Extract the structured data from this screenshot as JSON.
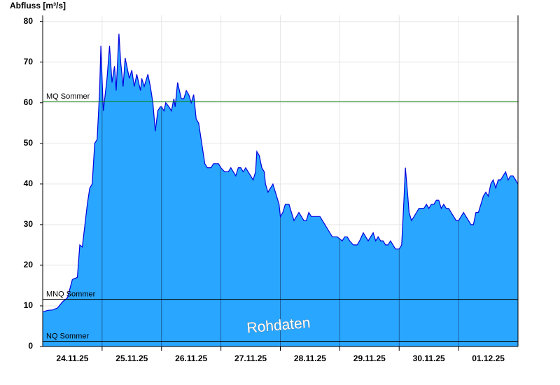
{
  "chart_data": {
    "type": "area",
    "title": "Abfluss [m³/s]",
    "annotation": "Rohdaten",
    "color": "#29a6ff",
    "line_color": "#0000dd",
    "grid": true,
    "xlim": [
      0,
      192
    ],
    "ylim": [
      0,
      81.5
    ],
    "yticks": [
      0,
      10,
      20,
      30,
      40,
      50,
      60,
      70,
      80
    ],
    "xticks": [
      {
        "value": 12,
        "label": "24.11.25"
      },
      {
        "value": 36,
        "label": "25.11.25"
      },
      {
        "value": 60,
        "label": "26.11.25"
      },
      {
        "value": 84,
        "label": "27.11.25"
      },
      {
        "value": 108,
        "label": "28.11.25"
      },
      {
        "value": 132,
        "label": "29.11.25"
      },
      {
        "value": 156,
        "label": "30.11.25"
      },
      {
        "value": 180,
        "label": "01.12.25"
      }
    ],
    "xgrid": [
      24,
      48,
      72,
      96,
      120,
      144,
      168
    ],
    "reference_lines": [
      {
        "label": "MQ Sommer",
        "value": 60.3,
        "color": "#008000"
      },
      {
        "label": "MNQ Sommer",
        "value": 11.6,
        "color": "#000000"
      },
      {
        "label": "NQ Sommer",
        "value": 1.3,
        "color": "#000000"
      }
    ],
    "x": [
      0,
      2,
      4,
      6,
      8,
      10,
      12,
      14,
      15,
      16,
      18,
      19,
      20,
      21,
      22,
      23,
      23.5,
      24.5,
      26,
      27,
      28,
      29,
      29.7,
      30.8,
      31.5,
      32.5,
      33.3,
      35,
      36,
      37,
      38,
      39.5,
      40,
      41,
      42.5,
      43.5,
      44.5,
      45.5,
      46.5,
      47.5,
      48,
      49,
      49.7,
      51,
      52,
      53,
      53.5,
      54.5,
      56,
      57,
      58,
      59,
      60,
      61,
      62,
      63,
      64.5,
      65.5,
      66.5,
      68,
      69,
      71,
      72,
      73.5,
      75,
      76,
      77,
      78,
      79,
      80,
      81,
      82,
      83,
      84,
      85,
      86,
      86.5,
      87.5,
      88.5,
      89.5,
      90,
      91,
      92,
      93,
      94.5,
      95.5,
      96,
      97,
      98,
      99.5,
      100.5,
      101.5,
      102.5,
      103.5,
      104.5,
      105.5,
      106.5,
      107.5,
      108.5,
      110,
      112,
      113,
      114,
      116,
      117,
      119,
      121,
      122,
      123,
      124,
      125.5,
      127,
      128,
      129.5,
      130.5,
      131.5,
      132.5,
      133.5,
      134.5,
      135.5,
      136.5,
      137.5,
      138.5,
      139.5,
      140.5,
      141.5,
      142.5,
      144,
      145,
      146,
      146.5,
      147.5,
      148,
      149,
      150,
      151,
      152,
      153,
      154,
      155,
      156,
      157,
      158,
      159,
      160,
      161,
      162,
      163,
      164,
      165,
      166,
      167,
      168,
      169,
      170,
      171,
      172,
      173,
      174,
      175,
      176,
      177,
      178,
      179,
      180,
      181,
      182,
      183,
      184,
      185,
      186,
      187,
      188,
      189,
      190,
      191,
      192
    ],
    "values": [
      8.5,
      8.9,
      9,
      9.5,
      11,
      12,
      16.5,
      17,
      25,
      24.5,
      35,
      39,
      40,
      50,
      51,
      63,
      74,
      58,
      66,
      74,
      65,
      69,
      63,
      77,
      70,
      64,
      71,
      66,
      68,
      64,
      67,
      63,
      66,
      64,
      67,
      64,
      60,
      53,
      58,
      59,
      59,
      58,
      60,
      59,
      58,
      61,
      59,
      65,
      61,
      61,
      63,
      62,
      60,
      62,
      56,
      55,
      49,
      45,
      44,
      44,
      45,
      45,
      44,
      43,
      43,
      44,
      43,
      42,
      44,
      44,
      43,
      44,
      43,
      42,
      41,
      43,
      48,
      47,
      44,
      43,
      40,
      38,
      39,
      40,
      37,
      35,
      32,
      33,
      35,
      35,
      33,
      31,
      32,
      33,
      32,
      31,
      31,
      33,
      32,
      32,
      32,
      31,
      30,
      28,
      27,
      27,
      26,
      27,
      27,
      26,
      25,
      25,
      26,
      28,
      27,
      26,
      27,
      28,
      26,
      27,
      26,
      26,
      25,
      25,
      26,
      25,
      24,
      24,
      25,
      37,
      44,
      37,
      33,
      31,
      32,
      33,
      34,
      34,
      34,
      35,
      34,
      35,
      35,
      36,
      36,
      34,
      35,
      34,
      34,
      33,
      32,
      31,
      31,
      32,
      33,
      32,
      31,
      30,
      30,
      33,
      33,
      35,
      37,
      38,
      37,
      40,
      41,
      39,
      41,
      41,
      42,
      43,
      41,
      42,
      42,
      41,
      40
    ]
  }
}
